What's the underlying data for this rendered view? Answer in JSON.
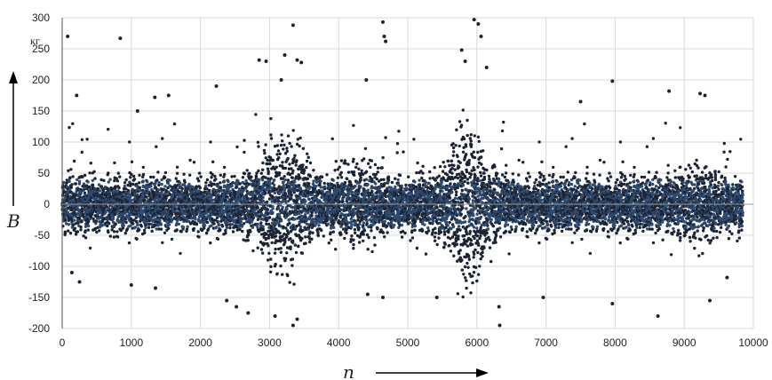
{
  "chart_data": {
    "type": "scatter",
    "title": "",
    "xlabel": "n",
    "ylabel": "B",
    "y_unit": "кг",
    "xlim": [
      0,
      10000
    ],
    "ylim": [
      -200,
      300
    ],
    "x_ticks": [
      "0",
      "1000",
      "2000",
      "3000",
      "4000",
      "5000",
      "6000",
      "7000",
      "8000",
      "9000",
      "10000"
    ],
    "y_ticks": [
      "300",
      "250",
      "200",
      "150",
      "100",
      "50",
      "0",
      "-50",
      "-100",
      "-150",
      "-200"
    ],
    "grid": "horizontal and vertical",
    "legend": "none",
    "marker_color": "#1c2333",
    "core_color": "#2e4a6e",
    "series": [
      {
        "points_count_approx": 9800,
        "x_range": [
          0,
          9850
        ],
        "core_band": [
          -50,
          50
        ],
        "outliers": [
          [
            80,
            270
          ],
          [
            210,
            175
          ],
          [
            840,
            267
          ],
          [
            1090,
            150
          ],
          [
            1340,
            172
          ],
          [
            1540,
            175
          ],
          [
            2230,
            190
          ],
          [
            2850,
            232
          ],
          [
            2950,
            230
          ],
          [
            3170,
            200
          ],
          [
            3220,
            240
          ],
          [
            3340,
            288
          ],
          [
            3400,
            232
          ],
          [
            3460,
            228
          ],
          [
            4400,
            200
          ],
          [
            4640,
            293
          ],
          [
            4660,
            270
          ],
          [
            4680,
            262
          ],
          [
            5780,
            248
          ],
          [
            5830,
            230
          ],
          [
            5960,
            297
          ],
          [
            6020,
            290
          ],
          [
            6060,
            270
          ],
          [
            6140,
            220
          ],
          [
            7500,
            165
          ],
          [
            7960,
            198
          ],
          [
            8780,
            182
          ],
          [
            9230,
            178
          ],
          [
            9300,
            175
          ],
          [
            140,
            -110
          ],
          [
            250,
            -125
          ],
          [
            1000,
            -130
          ],
          [
            1350,
            -135
          ],
          [
            2380,
            -155
          ],
          [
            2520,
            -165
          ],
          [
            2690,
            -175
          ],
          [
            3080,
            -180
          ],
          [
            3340,
            -195
          ],
          [
            3400,
            -185
          ],
          [
            4420,
            -145
          ],
          [
            4640,
            -150
          ],
          [
            5420,
            -150
          ],
          [
            6320,
            -165
          ],
          [
            6330,
            -195
          ],
          [
            6960,
            -150
          ],
          [
            7960,
            -160
          ],
          [
            8620,
            -180
          ],
          [
            9370,
            -155
          ],
          [
            9620,
            -118
          ]
        ]
      }
    ]
  }
}
